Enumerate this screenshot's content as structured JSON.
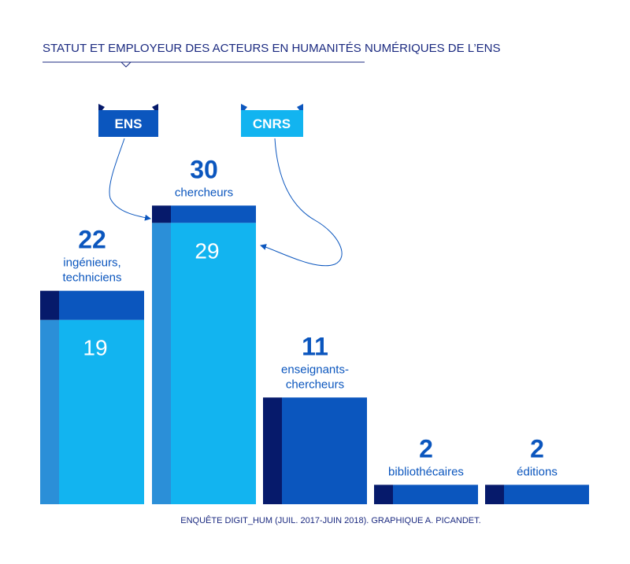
{
  "title": "STATUT ET EMPLOYEUR DES ACTEURS EN HUMANITÉS NUMÉRIQUES DE L’ENS",
  "source": "ENQUÊTE DIGIT_HUM (JUIL. 2017-JUIN 2018). GRAPHIQUE A. PICANDET.",
  "colors": {
    "ens": "#0b56be",
    "ens_dark": "#061a6b",
    "cnrs": "#12b4f0",
    "cnrs_side": "#2b8fd8",
    "text": "#0b56be",
    "title": "#1b2a80"
  },
  "legend": [
    {
      "label": "ENS",
      "series": "ENS"
    },
    {
      "label": "CNRS",
      "series": "CNRS"
    }
  ],
  "chart_data": {
    "type": "bar",
    "stacked": true,
    "title": "STATUT ET EMPLOYEUR DES ACTEURS EN HUMANITÉS NUMÉRIQUES DE L’ENS",
    "categories": [
      {
        "total_label": "22",
        "label_lines": [
          "ingénieurs,",
          "techniciens"
        ]
      },
      {
        "total_label": "30",
        "label_lines": [
          "chercheurs"
        ]
      },
      {
        "total_label": "11",
        "label_lines": [
          "enseignants-",
          "chercheurs"
        ]
      },
      {
        "total_label": "2",
        "label_lines": [
          "bibliothécaires"
        ]
      },
      {
        "total_label": "2",
        "label_lines": [
          "éditions"
        ]
      }
    ],
    "totals": [
      22,
      30,
      11,
      2,
      2
    ],
    "series": [
      {
        "name": "CNRS",
        "values": [
          19,
          29,
          0,
          0,
          0
        ],
        "inner_labels": [
          "19",
          "29",
          "",
          "",
          ""
        ]
      },
      {
        "name": "ENS",
        "values": [
          3,
          1,
          11,
          2,
          2
        ]
      }
    ],
    "ylim": [
      0,
      30
    ],
    "xlabel": "",
    "ylabel": "",
    "grid": false
  }
}
